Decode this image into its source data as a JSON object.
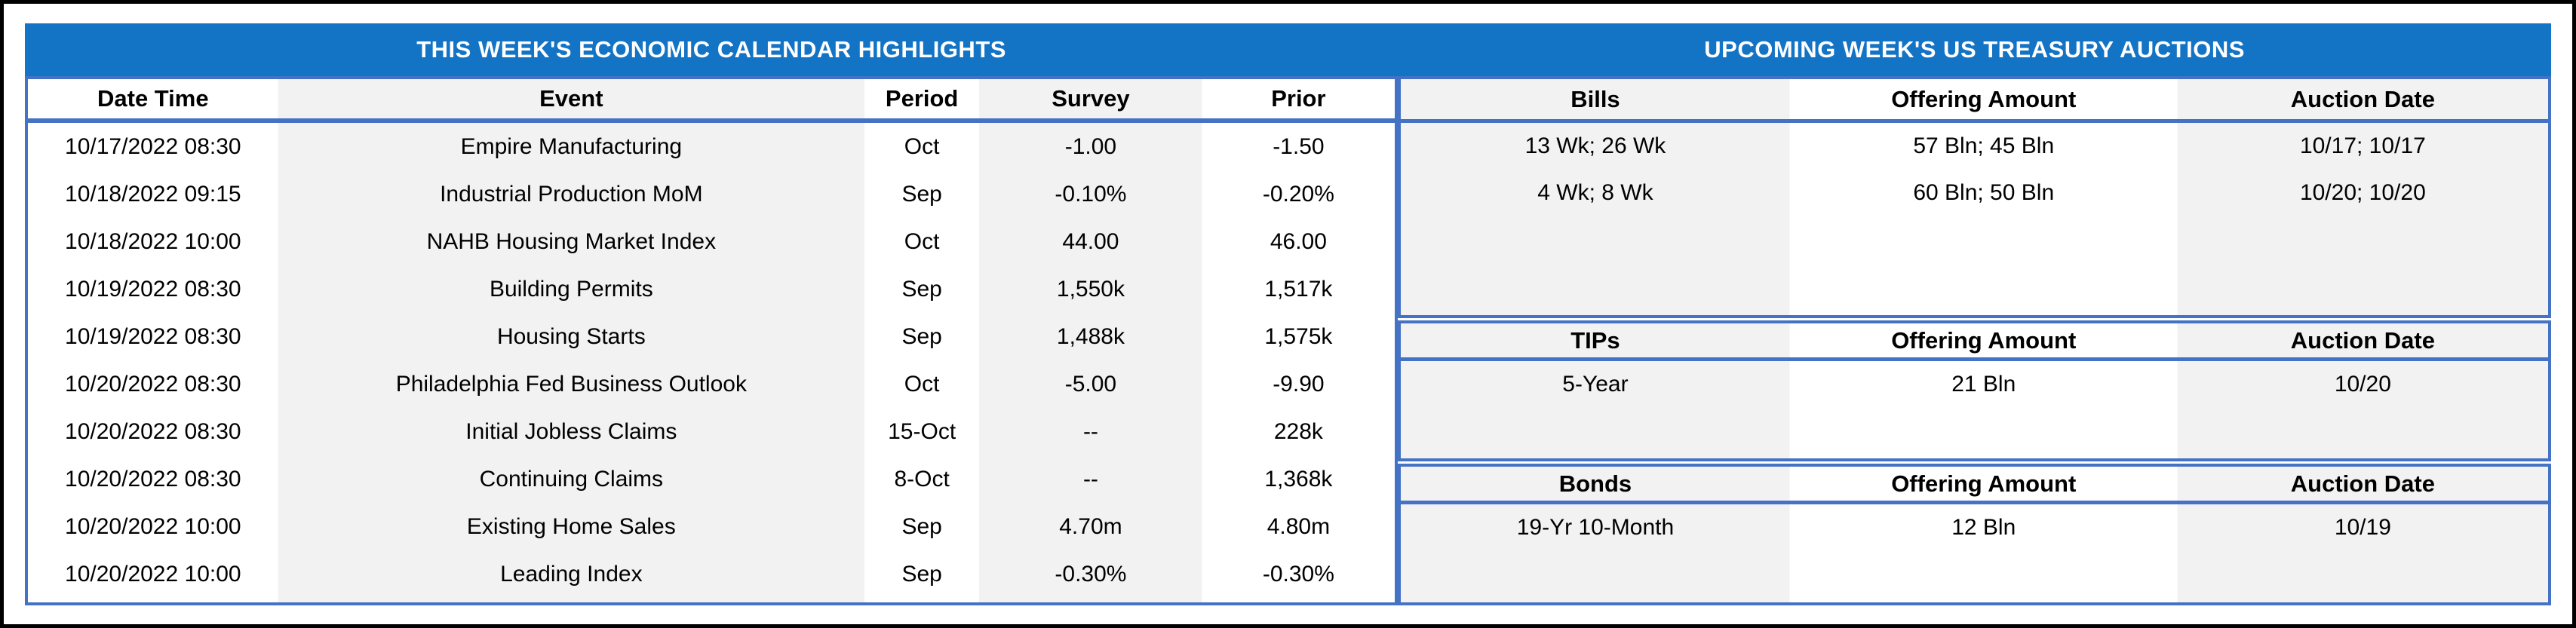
{
  "colors": {
    "title_band": "#1373C4",
    "table_border": "#4472C4",
    "stripe_gray": "#F2F2F2",
    "outer_frame": "#000000",
    "title_text": "#FFFFFF",
    "body_text": "#000000"
  },
  "calendar": {
    "title": "THIS WEEK'S ECONOMIC CALENDAR HIGHLIGHTS",
    "columns": [
      "Date Time",
      "Event",
      "Period",
      "Survey",
      "Prior"
    ],
    "rows": [
      {
        "date_time": "10/17/2022 08:30",
        "event": "Empire Manufacturing",
        "period": "Oct",
        "survey": "-1.00",
        "prior": "-1.50"
      },
      {
        "date_time": "10/18/2022 09:15",
        "event": "Industrial Production MoM",
        "period": "Sep",
        "survey": "-0.10%",
        "prior": "-0.20%"
      },
      {
        "date_time": "10/18/2022 10:00",
        "event": "NAHB Housing Market Index",
        "period": "Oct",
        "survey": "44.00",
        "prior": "46.00"
      },
      {
        "date_time": "10/19/2022 08:30",
        "event": "Building Permits",
        "period": "Sep",
        "survey": "1,550k",
        "prior": "1,517k"
      },
      {
        "date_time": "10/19/2022 08:30",
        "event": "Housing Starts",
        "period": "Sep",
        "survey": "1,488k",
        "prior": "1,575k"
      },
      {
        "date_time": "10/20/2022 08:30",
        "event": "Philadelphia Fed Business Outlook",
        "period": "Oct",
        "survey": "-5.00",
        "prior": "-9.90"
      },
      {
        "date_time": "10/20/2022 08:30",
        "event": "Initial Jobless Claims",
        "period": "15-Oct",
        "survey": "--",
        "prior": "228k"
      },
      {
        "date_time": "10/20/2022 08:30",
        "event": "Continuing Claims",
        "period": "8-Oct",
        "survey": "--",
        "prior": "1,368k"
      },
      {
        "date_time": "10/20/2022 10:00",
        "event": "Existing Home Sales",
        "period": "Sep",
        "survey": "4.70m",
        "prior": "4.80m"
      },
      {
        "date_time": "10/20/2022 10:00",
        "event": "Leading Index",
        "period": "Sep",
        "survey": "-0.30%",
        "prior": "-0.30%"
      }
    ]
  },
  "auctions": {
    "title": "UPCOMING WEEK'S US TREASURY AUCTIONS",
    "sections": [
      {
        "columns": [
          "Bills",
          "Offering Amount",
          "Auction Date"
        ],
        "rows": [
          {
            "instrument": "13 Wk; 26 Wk",
            "offering": "57 Bln; 45 Bln",
            "auction_date": "10/17; 10/17"
          },
          {
            "instrument": "4 Wk; 8 Wk",
            "offering": "60 Bln; 50 Bln",
            "auction_date": "10/20; 10/20"
          }
        ]
      },
      {
        "columns": [
          "TIPs",
          "Offering Amount",
          "Auction Date"
        ],
        "rows": [
          {
            "instrument": "5-Year",
            "offering": "21 Bln",
            "auction_date": "10/20"
          }
        ]
      },
      {
        "columns": [
          "Bonds",
          "Offering Amount",
          "Auction Date"
        ],
        "rows": [
          {
            "instrument": "19-Yr 10-Month",
            "offering": "12 Bln",
            "auction_date": "10/19"
          }
        ]
      }
    ]
  }
}
